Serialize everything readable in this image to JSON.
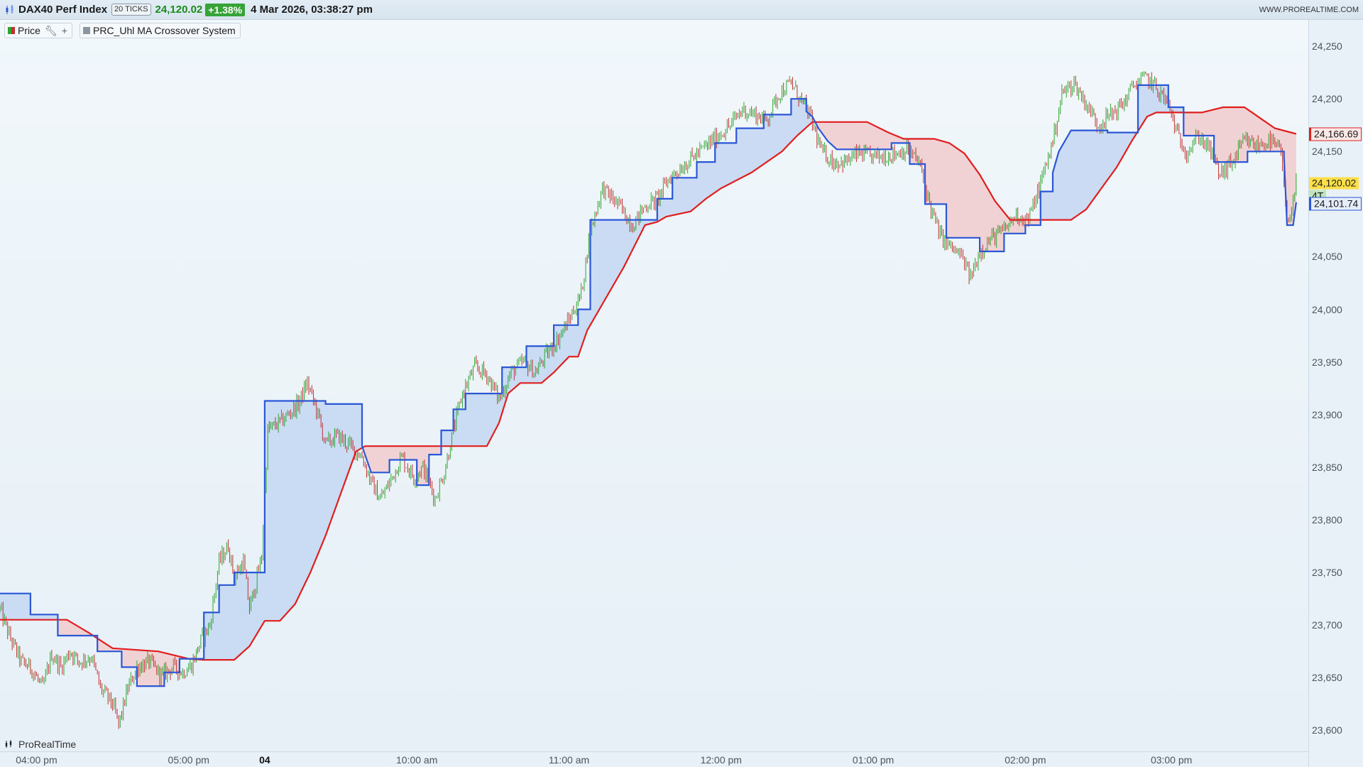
{
  "header": {
    "instrument": "DAX40 Perf Index",
    "ticks_label": "20 TICKS",
    "last_price": "24,120.02",
    "change": "+1.38%",
    "datetime": "4 Mar 2026, 03:38:27 pm",
    "brand_url": "WWW.PROREALTIME.COM"
  },
  "legend": {
    "price_label": "Price",
    "indicator_label": "PRC_Uhl MA Crossover System"
  },
  "footer": {
    "brand": "ProRealTime"
  },
  "price_tags": {
    "red": "24,166.69",
    "last": "24,120.02",
    "countdown": "4T",
    "blue": "24,101.74"
  },
  "colors": {
    "fast_line": "#2b57d6",
    "slow_line": "#e01e1e",
    "bull_fill": "#c8d9f3",
    "bear_fill": "#f0d0d2",
    "candle_up": "#2ea52e",
    "candle_down": "#c03030",
    "last_tag": "#ffe04a"
  },
  "chart_data": {
    "type": "line",
    "title": "",
    "y_ticks": [
      "24,250",
      "24,200",
      "24,150",
      "24,100",
      "24,050",
      "24,000",
      "23,950",
      "23,900",
      "23,850",
      "23,800",
      "23,750",
      "23,700",
      "23,650",
      "23,600"
    ],
    "y_tick_values": [
      24250,
      24200,
      24150,
      24100,
      24050,
      24000,
      23950,
      23900,
      23850,
      23800,
      23750,
      23700,
      23650,
      23600
    ],
    "x_ticks": [
      "04:00 pm",
      "05:00 pm",
      "04",
      "10:00 am",
      "11:00 am",
      "12:00 pm",
      "01:00 pm",
      "02:00 pm",
      "03:00 pm"
    ],
    "x_tick_positions": [
      0.5,
      5.5,
      8.0,
      13.0,
      18.0,
      23.0,
      28.0,
      33.0,
      37.8
    ],
    "x_range": [
      -0.7,
      42.3
    ],
    "ylim": [
      23580,
      24275
    ],
    "series": [
      {
        "name": "",
        "role": "fast",
        "points": [
          [
            -0.7,
            23730
          ],
          [
            0.3,
            23730
          ],
          [
            0.3,
            23710
          ],
          [
            1.2,
            23710
          ],
          [
            1.2,
            23690
          ],
          [
            2.5,
            23690
          ],
          [
            2.5,
            23675
          ],
          [
            3.3,
            23675
          ],
          [
            3.3,
            23660
          ],
          [
            3.8,
            23660
          ],
          [
            3.8,
            23642
          ],
          [
            4.7,
            23642
          ],
          [
            4.7,
            23655
          ],
          [
            5.2,
            23655
          ],
          [
            5.2,
            23668
          ],
          [
            6.0,
            23668
          ],
          [
            6.0,
            23712
          ],
          [
            6.5,
            23712
          ],
          [
            6.5,
            23738
          ],
          [
            7.0,
            23738
          ],
          [
            7.0,
            23750
          ],
          [
            8.0,
            23750
          ],
          [
            8.0,
            23913
          ],
          [
            10.0,
            23913
          ],
          [
            10.0,
            23910
          ],
          [
            11.2,
            23910
          ],
          [
            11.2,
            23870
          ],
          [
            11.5,
            23845
          ],
          [
            12.1,
            23845
          ],
          [
            12.1,
            23857
          ],
          [
            13.0,
            23857
          ],
          [
            13.0,
            23833
          ],
          [
            13.4,
            23833
          ],
          [
            13.4,
            23862
          ],
          [
            13.8,
            23862
          ],
          [
            13.8,
            23885
          ],
          [
            14.2,
            23885
          ],
          [
            14.2,
            23905
          ],
          [
            14.6,
            23905
          ],
          [
            14.6,
            23920
          ],
          [
            15.8,
            23920
          ],
          [
            15.8,
            23945
          ],
          [
            16.6,
            23945
          ],
          [
            16.6,
            23965
          ],
          [
            17.5,
            23965
          ],
          [
            17.5,
            23985
          ],
          [
            18.3,
            23985
          ],
          [
            18.3,
            24000
          ],
          [
            18.7,
            24000
          ],
          [
            18.7,
            24085
          ],
          [
            20.9,
            24085
          ],
          [
            20.9,
            24105
          ],
          [
            21.4,
            24105
          ],
          [
            21.4,
            24125
          ],
          [
            22.2,
            24125
          ],
          [
            22.2,
            24140
          ],
          [
            22.8,
            24140
          ],
          [
            22.8,
            24158
          ],
          [
            23.5,
            24158
          ],
          [
            23.5,
            24172
          ],
          [
            24.4,
            24172
          ],
          [
            24.4,
            24185
          ],
          [
            25.3,
            24185
          ],
          [
            25.3,
            24200
          ],
          [
            25.8,
            24200
          ],
          [
            25.8,
            24188
          ],
          [
            26.0,
            24183
          ],
          [
            26.2,
            24172
          ],
          [
            26.5,
            24160
          ],
          [
            26.8,
            24152
          ],
          [
            28.6,
            24152
          ],
          [
            28.6,
            24158
          ],
          [
            29.2,
            24158
          ],
          [
            29.2,
            24138
          ],
          [
            29.7,
            24138
          ],
          [
            29.7,
            24100
          ],
          [
            30.4,
            24100
          ],
          [
            30.4,
            24068
          ],
          [
            31.5,
            24068
          ],
          [
            31.5,
            24055
          ],
          [
            32.3,
            24055
          ],
          [
            32.3,
            24072
          ],
          [
            33.0,
            24072
          ],
          [
            33.0,
            24080
          ],
          [
            33.5,
            24080
          ],
          [
            33.5,
            24112
          ],
          [
            33.9,
            24112
          ],
          [
            33.9,
            24130
          ],
          [
            34.1,
            24150
          ],
          [
            34.5,
            24170
          ],
          [
            35.7,
            24170
          ],
          [
            35.7,
            24168
          ],
          [
            36.7,
            24168
          ],
          [
            36.7,
            24213
          ],
          [
            37.7,
            24213
          ],
          [
            37.7,
            24192
          ],
          [
            38.2,
            24192
          ],
          [
            38.2,
            24165
          ],
          [
            39.2,
            24165
          ],
          [
            39.2,
            24140
          ],
          [
            40.3,
            24140
          ],
          [
            40.3,
            24150
          ],
          [
            41.5,
            24150
          ],
          [
            41.5,
            24145
          ],
          [
            41.6,
            24080
          ],
          [
            41.8,
            24080
          ],
          [
            41.9,
            24101.74
          ]
        ]
      },
      {
        "name": "",
        "role": "slow",
        "points": [
          [
            -0.7,
            23705
          ],
          [
            1.5,
            23705
          ],
          [
            2.2,
            23693
          ],
          [
            3.0,
            23678
          ],
          [
            4.5,
            23675
          ],
          [
            5.5,
            23668
          ],
          [
            6.0,
            23667
          ],
          [
            7.0,
            23667
          ],
          [
            7.5,
            23680
          ],
          [
            8.0,
            23704
          ],
          [
            8.5,
            23704
          ],
          [
            9.0,
            23720
          ],
          [
            9.5,
            23750
          ],
          [
            10.0,
            23785
          ],
          [
            10.5,
            23825
          ],
          [
            11.0,
            23865
          ],
          [
            11.3,
            23870
          ],
          [
            15.3,
            23870
          ],
          [
            15.7,
            23892
          ],
          [
            16.0,
            23920
          ],
          [
            16.4,
            23930
          ],
          [
            17.1,
            23930
          ],
          [
            17.5,
            23940
          ],
          [
            18.0,
            23955
          ],
          [
            18.3,
            23955
          ],
          [
            18.6,
            23980
          ],
          [
            19.2,
            24010
          ],
          [
            19.8,
            24040
          ],
          [
            20.5,
            24080
          ],
          [
            20.9,
            24083
          ],
          [
            21.2,
            24088
          ],
          [
            22.0,
            24093
          ],
          [
            22.5,
            24105
          ],
          [
            23.0,
            24115
          ],
          [
            24.0,
            24130
          ],
          [
            25.0,
            24150
          ],
          [
            25.5,
            24165
          ],
          [
            26.0,
            24178
          ],
          [
            27.8,
            24178
          ],
          [
            28.5,
            24168
          ],
          [
            29.0,
            24162
          ],
          [
            30.0,
            24162
          ],
          [
            30.5,
            24158
          ],
          [
            31.0,
            24148
          ],
          [
            31.5,
            24128
          ],
          [
            32.0,
            24103
          ],
          [
            32.5,
            24085
          ],
          [
            33.5,
            24085
          ],
          [
            34.5,
            24085
          ],
          [
            35.0,
            24095
          ],
          [
            35.5,
            24115
          ],
          [
            36.0,
            24135
          ],
          [
            36.5,
            24160
          ],
          [
            37.0,
            24183
          ],
          [
            37.3,
            24187
          ],
          [
            38.8,
            24187
          ],
          [
            39.5,
            24192
          ],
          [
            40.2,
            24192
          ],
          [
            40.8,
            24180
          ],
          [
            41.2,
            24172
          ],
          [
            41.9,
            24166.69
          ]
        ]
      },
      {
        "name": "Price",
        "role": "price",
        "points": [
          [
            -0.7,
            23715
          ],
          [
            -0.4,
            23690
          ],
          [
            0.0,
            23665
          ],
          [
            0.3,
            23660
          ],
          [
            0.7,
            23640
          ],
          [
            1.0,
            23672
          ],
          [
            1.3,
            23660
          ],
          [
            1.6,
            23675
          ],
          [
            1.9,
            23665
          ],
          [
            2.3,
            23670
          ],
          [
            2.6,
            23640
          ],
          [
            3.0,
            23625
          ],
          [
            3.2,
            23605
          ],
          [
            3.5,
            23640
          ],
          [
            3.8,
            23660
          ],
          [
            4.2,
            23665
          ],
          [
            4.6,
            23652
          ],
          [
            5.0,
            23660
          ],
          [
            5.3,
            23655
          ],
          [
            5.6,
            23662
          ],
          [
            5.9,
            23685
          ],
          [
            6.2,
            23700
          ],
          [
            6.5,
            23760
          ],
          [
            6.8,
            23775
          ],
          [
            7.0,
            23745
          ],
          [
            7.3,
            23760
          ],
          [
            7.5,
            23715
          ],
          [
            7.9,
            23765
          ],
          [
            8.1,
            23885
          ],
          [
            8.6,
            23895
          ],
          [
            9.1,
            23910
          ],
          [
            9.4,
            23930
          ],
          [
            9.7,
            23905
          ],
          [
            10.0,
            23872
          ],
          [
            10.4,
            23880
          ],
          [
            10.8,
            23870
          ],
          [
            11.2,
            23860
          ],
          [
            11.5,
            23835
          ],
          [
            11.8,
            23820
          ],
          [
            12.1,
            23835
          ],
          [
            12.5,
            23860
          ],
          [
            12.9,
            23840
          ],
          [
            13.2,
            23850
          ],
          [
            13.6,
            23820
          ],
          [
            13.9,
            23845
          ],
          [
            14.2,
            23885
          ],
          [
            14.5,
            23920
          ],
          [
            14.9,
            23945
          ],
          [
            15.3,
            23938
          ],
          [
            15.7,
            23915
          ],
          [
            16.1,
            23940
          ],
          [
            16.5,
            23950
          ],
          [
            16.9,
            23940
          ],
          [
            17.2,
            23955
          ],
          [
            17.6,
            23970
          ],
          [
            18.0,
            23990
          ],
          [
            18.4,
            24015
          ],
          [
            18.7,
            24075
          ],
          [
            19.1,
            24115
          ],
          [
            19.6,
            24100
          ],
          [
            20.1,
            24080
          ],
          [
            20.5,
            24098
          ],
          [
            20.9,
            24105
          ],
          [
            21.3,
            24125
          ],
          [
            21.7,
            24135
          ],
          [
            22.1,
            24145
          ],
          [
            22.5,
            24155
          ],
          [
            22.9,
            24165
          ],
          [
            23.3,
            24175
          ],
          [
            23.7,
            24190
          ],
          [
            24.1,
            24185
          ],
          [
            24.5,
            24180
          ],
          [
            24.9,
            24205
          ],
          [
            25.3,
            24215
          ],
          [
            25.6,
            24200
          ],
          [
            25.9,
            24185
          ],
          [
            26.3,
            24150
          ],
          [
            26.7,
            24140
          ],
          [
            27.1,
            24140
          ],
          [
            27.5,
            24148
          ],
          [
            27.9,
            24145
          ],
          [
            28.3,
            24145
          ],
          [
            28.7,
            24148
          ],
          [
            29.1,
            24152
          ],
          [
            29.5,
            24140
          ],
          [
            29.9,
            24095
          ],
          [
            30.2,
            24070
          ],
          [
            30.5,
            24060
          ],
          [
            30.9,
            24050
          ],
          [
            31.2,
            24030
          ],
          [
            31.5,
            24055
          ],
          [
            31.9,
            24068
          ],
          [
            32.3,
            24075
          ],
          [
            32.7,
            24090
          ],
          [
            33.1,
            24085
          ],
          [
            33.5,
            24120
          ],
          [
            33.9,
            24160
          ],
          [
            34.2,
            24205
          ],
          [
            34.6,
            24215
          ],
          [
            35.0,
            24195
          ],
          [
            35.4,
            24175
          ],
          [
            35.8,
            24185
          ],
          [
            36.2,
            24195
          ],
          [
            36.6,
            24215
          ],
          [
            37.0,
            24220
          ],
          [
            37.3,
            24210
          ],
          [
            37.7,
            24195
          ],
          [
            38.0,
            24165
          ],
          [
            38.3,
            24150
          ],
          [
            38.7,
            24165
          ],
          [
            39.1,
            24150
          ],
          [
            39.4,
            24128
          ],
          [
            39.8,
            24140
          ],
          [
            40.2,
            24160
          ],
          [
            40.6,
            24155
          ],
          [
            41.0,
            24160
          ],
          [
            41.4,
            24150
          ],
          [
            41.6,
            24080
          ],
          [
            41.8,
            24105
          ],
          [
            41.9,
            24120.02
          ]
        ]
      }
    ]
  }
}
